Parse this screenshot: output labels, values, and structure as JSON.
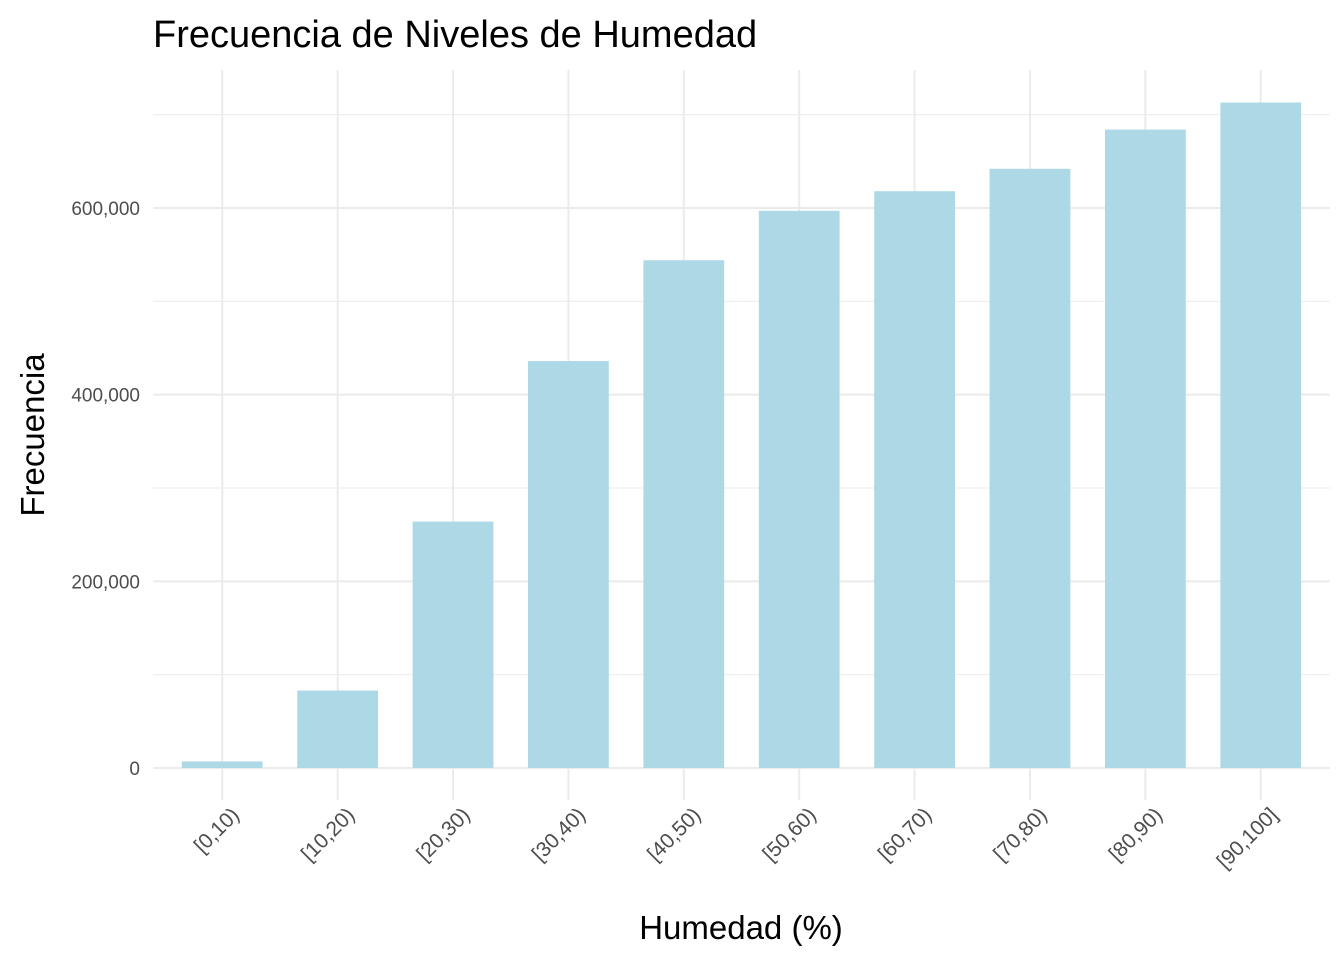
{
  "chart_data": {
    "type": "bar",
    "title": "Frecuencia de Niveles de Humedad",
    "xlabel": "Humedad (%)",
    "ylabel": "Frecuencia",
    "categories": [
      "[0,10)",
      "[10,20)",
      "[20,30)",
      "[30,40)",
      "[40,50)",
      "[50,60)",
      "[60,70)",
      "[70,80)",
      "[80,90)",
      "[90,100]"
    ],
    "values": [
      7000,
      83000,
      264000,
      436000,
      544000,
      597000,
      618000,
      642000,
      684000,
      713000
    ],
    "ylim": [
      0,
      750000
    ],
    "y_ticks": [
      0,
      200000,
      400000,
      600000
    ],
    "y_tick_labels": [
      "0",
      "200,000",
      "400,000",
      "600,000"
    ],
    "grid": true,
    "legend": "none",
    "colors": {
      "bar": "#ADD8E6",
      "grid": "#EBEBEB",
      "text": "#000000",
      "tick_text": "#4D4D4D"
    }
  }
}
